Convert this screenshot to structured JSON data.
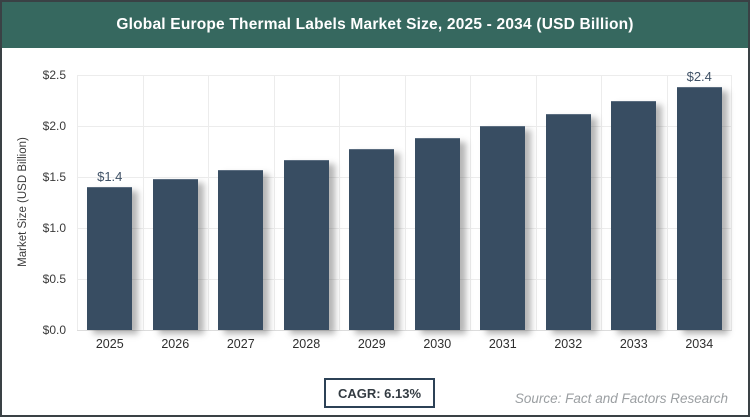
{
  "header": {
    "bg_color": "#36685F",
    "text_color": "#FFFFFF"
  },
  "chart_data": {
    "type": "bar",
    "title": "Global Europe Thermal Labels Market Size, 2025 - 2034 (USD Billion)",
    "categories": [
      "2025",
      "2026",
      "2027",
      "2028",
      "2029",
      "2030",
      "2031",
      "2032",
      "2033",
      "2034"
    ],
    "values": [
      1.39,
      1.47,
      1.56,
      1.66,
      1.76,
      1.87,
      1.99,
      2.11,
      2.24,
      2.37
    ],
    "bar_labels": {
      "first": "$1.4",
      "last": "$2.4"
    },
    "xlabel": "",
    "ylabel": "Market Size (USD Billion)",
    "ylim": [
      0,
      2.5
    ],
    "ytick_values": [
      0,
      0.5,
      1.0,
      1.5,
      2.0,
      2.5
    ],
    "ytick_labels": [
      "$0.0",
      "$0.5",
      "$1.0",
      "$1.5",
      "$2.0",
      "$2.5"
    ],
    "grid": "horizontal and vertical light gridlines",
    "legend": "none",
    "bar_color": "#384D62"
  },
  "footer": {
    "cagr_label": "CAGR: 6.13%",
    "source": "Source: Fact and Factors Research"
  }
}
